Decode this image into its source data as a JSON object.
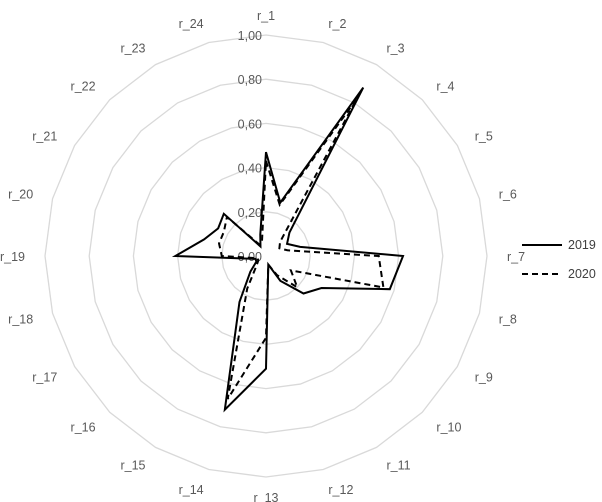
{
  "chart_data": {
    "type": "radar",
    "title": "",
    "categories": [
      "r_1",
      "r_2",
      "r_3",
      "r_4",
      "r_5",
      "r_6",
      "r_7",
      "r_8",
      "r_9",
      "r_10",
      "r_11",
      "r_12",
      "r_13",
      "r_14",
      "r_15",
      "r_16",
      "r_17",
      "r_18",
      "r_19",
      "r_20",
      "r_21",
      "r_22",
      "r_23",
      "r_24"
    ],
    "rlim": [
      0,
      1
    ],
    "ticks": [
      "0,00",
      "0,20",
      "0,40",
      "0,60",
      "0,80",
      "1,00"
    ],
    "tick_values": [
      0,
      0.2,
      0.4,
      0.6,
      0.8,
      1.0
    ],
    "grid": true,
    "legend_position": "right",
    "series": [
      {
        "name": "2019",
        "line_style": "solid",
        "color": "#000000",
        "values": [
          0.47,
          0.25,
          0.88,
          0.15,
          0.11,
          0.16,
          0.62,
          0.58,
          0.29,
          0.24,
          0.13,
          0.04,
          0.51,
          0.72,
          0.24,
          0.1,
          0.05,
          0.05,
          0.41,
          0.29,
          0.25,
          0.27,
          0.05,
          0.1
        ]
      },
      {
        "name": "2020",
        "line_style": "dashed",
        "color": "#000000",
        "values": [
          0.43,
          0.24,
          0.82,
          0.09,
          0.07,
          0.1,
          0.51,
          0.55,
          0.13,
          0.2,
          0.1,
          0.04,
          0.37,
          0.67,
          0.17,
          0.06,
          0.04,
          0.04,
          0.2,
          0.22,
          0.22,
          0.25,
          0.06,
          0.07
        ]
      }
    ]
  }
}
